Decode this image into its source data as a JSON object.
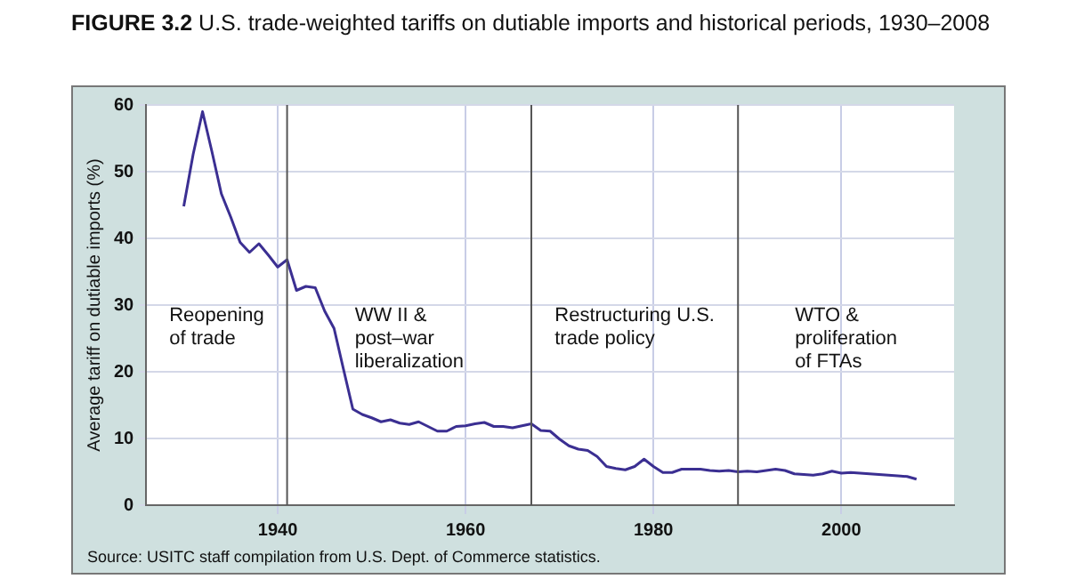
{
  "chart_data": {
    "type": "line",
    "title": "FIGURE 3.2 U.S. trade-weighted tariffs on dutiable imports and historical periods, 1930–2008",
    "ylabel": "Average tariff on dutiable imports (%)",
    "x": [
      1930,
      1931,
      1932,
      1933,
      1934,
      1935,
      1936,
      1937,
      1938,
      1939,
      1940,
      1941,
      1942,
      1943,
      1944,
      1945,
      1946,
      1947,
      1948,
      1949,
      1950,
      1951,
      1952,
      1953,
      1954,
      1955,
      1956,
      1957,
      1958,
      1959,
      1960,
      1961,
      1962,
      1963,
      1964,
      1965,
      1966,
      1967,
      1968,
      1969,
      1970,
      1971,
      1972,
      1973,
      1974,
      1975,
      1976,
      1977,
      1978,
      1979,
      1980,
      1981,
      1982,
      1983,
      1984,
      1985,
      1986,
      1987,
      1988,
      1989,
      1990,
      1991,
      1992,
      1993,
      1994,
      1995,
      1996,
      1997,
      1998,
      1999,
      2000,
      2001,
      2002,
      2003,
      2004,
      2005,
      2006,
      2007,
      2008
    ],
    "series": [
      {
        "color": "#3b2f92",
        "values": [
          44.8,
          52.6,
          59,
          53,
          46.7,
          43.2,
          39.4,
          37.9,
          39.2,
          37.5,
          35.7,
          36.8,
          32.2,
          32.8,
          32.6,
          29.1,
          26.5,
          20.4,
          14.4,
          13.6,
          13.1,
          12.5,
          12.8,
          12.3,
          12.1,
          12.5,
          11.8,
          11.1,
          11.1,
          11.8,
          11.9,
          12.2,
          12.4,
          11.8,
          11.8,
          11.6,
          11.9,
          12.2,
          11.2,
          11.1,
          9.9,
          8.9,
          8.4,
          8.2,
          7.3,
          5.8,
          5.5,
          5.3,
          5.8,
          6.9,
          5.8,
          4.9,
          4.9,
          5.4,
          5.4,
          5.4,
          5.2,
          5.1,
          5.2,
          5.0,
          5.1,
          5.0,
          5.2,
          5.4,
          5.2,
          4.7,
          4.6,
          4.5,
          4.7,
          5.1,
          4.8,
          4.9,
          4.8,
          4.7,
          4.6,
          4.5,
          4.4,
          4.3,
          3.9
        ]
      }
    ],
    "xlim": [
      1926,
      2012
    ],
    "xticks": [
      1940,
      1960,
      1980,
      2000
    ],
    "ylim": [
      0,
      60
    ],
    "yticks": [
      0,
      10,
      20,
      30,
      40,
      50,
      60
    ],
    "grid": true,
    "legend": false,
    "marker": "none",
    "line_style": "solid",
    "ref_lines": [
      {
        "axis": "x",
        "value": 1941,
        "color": "#555555"
      },
      {
        "axis": "x",
        "value": 1967,
        "color": "#555555"
      },
      {
        "axis": "x",
        "value": 1989,
        "color": "#555555"
      }
    ],
    "annotations": [
      "Reopening\nof trade",
      "WW II &\npost–war\nliberalization",
      "Restructuring U.S.\ntrade policy",
      "WTO &\nproliferation\nof FTAs",
      "Source: USITC staff compilation from U.S. Dept. of Commerce statistics."
    ]
  }
}
